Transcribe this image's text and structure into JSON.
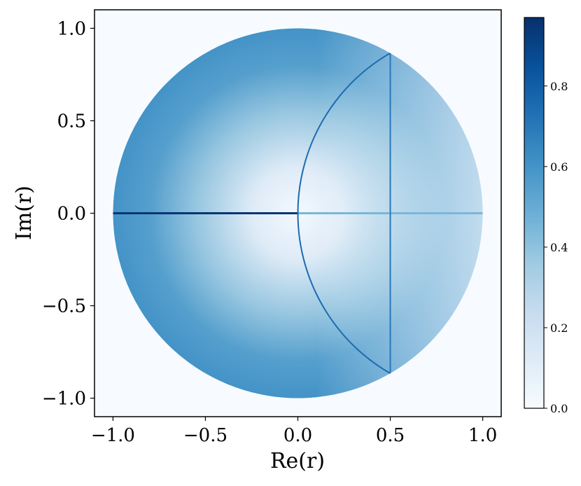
{
  "chart_data": {
    "type": "heatmap",
    "xlabel": "Re(r)",
    "ylabel": "Im(r)",
    "xlim": [
      -1.1,
      1.1
    ],
    "ylim": [
      -1.1,
      1.1
    ],
    "x_ticks": [
      -1.0,
      -0.5,
      0.0,
      0.5,
      1.0
    ],
    "x_tick_labels": [
      "−1.0",
      "−0.5",
      "0.0",
      "0.5",
      "1.0"
    ],
    "y_ticks": [
      -1.0,
      -0.5,
      0.0,
      0.5,
      1.0
    ],
    "y_tick_labels": [
      "−1.0",
      "−0.5",
      "0.0",
      "0.5",
      "1.0"
    ],
    "grid": false,
    "colormap": "Blues",
    "colormap_stops": [
      "#f7fbff",
      "#deebf7",
      "#c6dbef",
      "#9ecae1",
      "#6baed6",
      "#4292c6",
      "#2171b5",
      "#08519c",
      "#08306b"
    ],
    "colorbar": {
      "range": [
        0.0,
        0.97
      ],
      "ticks": [
        0.0,
        0.2,
        0.4,
        0.6,
        0.8
      ],
      "tick_labels": [
        "0.0",
        "0.2",
        "0.4",
        "0.6",
        "0.8"
      ]
    },
    "support": "unit disk |r| <= 1",
    "features": [
      {
        "kind": "radial gradient",
        "value_at_center": 0.02,
        "value_at_rim_left": 0.6,
        "value_at_rim_right": 0.2
      },
      {
        "kind": "segment",
        "from": [
          -1.0,
          0.0
        ],
        "to": [
          0.0,
          0.0
        ],
        "value": 0.95
      },
      {
        "kind": "segment",
        "from": [
          0.0,
          0.0
        ],
        "to": [
          1.0,
          0.0
        ],
        "value": 0.45
      },
      {
        "kind": "segment",
        "from": [
          0.5,
          -0.866
        ],
        "to": [
          0.5,
          0.866
        ],
        "value": 0.7
      },
      {
        "kind": "arc",
        "center": [
          1.0,
          0.0
        ],
        "radius": 1.0,
        "from": [
          0.5,
          0.866
        ],
        "to": [
          0.5,
          -0.866
        ],
        "value": 0.75
      }
    ]
  }
}
